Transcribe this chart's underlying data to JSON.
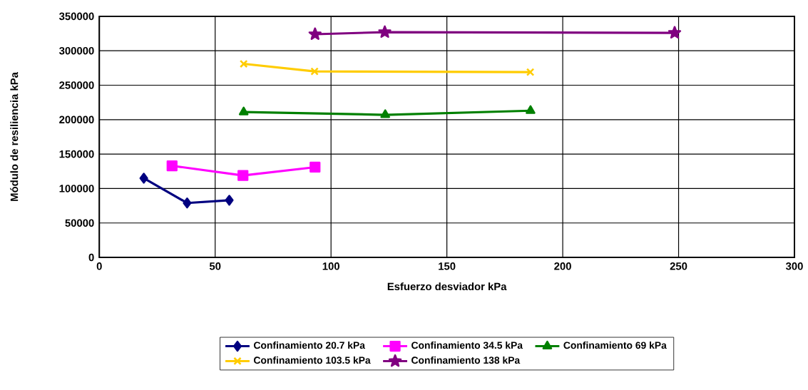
{
  "chart_data": {
    "type": "line",
    "xlabel": "Esfuerzo desviador kPa",
    "ylabel": "Módulo de resiliencia kPa",
    "xlim": [
      0,
      300
    ],
    "xticks": [
      0,
      50,
      100,
      150,
      200,
      250,
      300
    ],
    "ylim": [
      0,
      350000
    ],
    "yticks": [
      0,
      50000,
      100000,
      150000,
      200000,
      250000,
      300000,
      350000
    ],
    "grid": true,
    "legend": "bottom",
    "line_style": "solid",
    "series": [
      {
        "name": "Confinamiento 20.7 kPa",
        "color": "#000080",
        "marker": "diamond",
        "x": [
          19.2,
          37.9,
          56.1
        ],
        "values": [
          115000,
          79000,
          83000
        ]
      },
      {
        "name": "Confinamiento 34.5 kPa",
        "color": "#ff00ff",
        "marker": "square",
        "x": [
          31.4,
          62.0,
          93.1
        ],
        "values": [
          133000,
          119000,
          131000
        ]
      },
      {
        "name": "Confinamiento 69 kPa",
        "color": "#008000",
        "marker": "triangle",
        "x": [
          62.3,
          123.4,
          186.1
        ],
        "values": [
          211000,
          207000,
          213000
        ]
      },
      {
        "name": "Confinamiento 103.5 kPa",
        "color": "#ffcc00",
        "marker": "cross",
        "x": [
          62.3,
          92.9,
          186.0
        ],
        "values": [
          281000,
          270000,
          269000
        ]
      },
      {
        "name": "Confinamiento 138 kPa",
        "color": "#800080",
        "marker": "star",
        "x": [
          93.1,
          123.2,
          248.3
        ],
        "values": [
          324000,
          327000,
          326000
        ]
      }
    ]
  }
}
